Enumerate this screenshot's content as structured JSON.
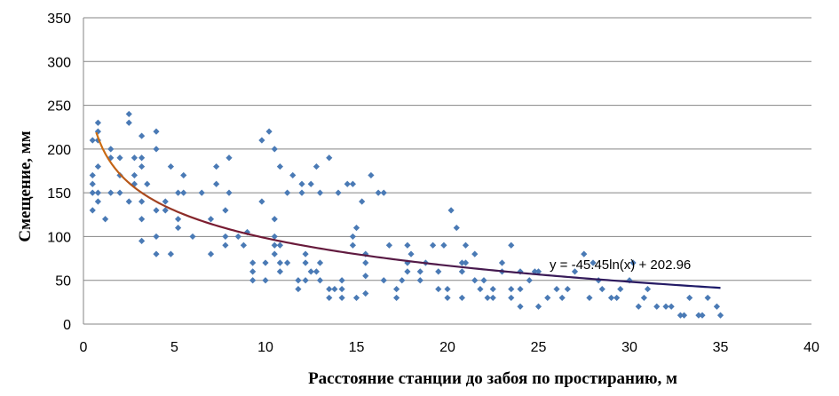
{
  "chart_data": {
    "type": "scatter",
    "title": "",
    "xlabel": "Расстояние станции до забоя по простиранию, м",
    "ylabel": "Смещение, мм",
    "xlim": [
      0,
      40
    ],
    "ylim": [
      0,
      350
    ],
    "x_ticks": [
      0,
      5,
      10,
      15,
      20,
      25,
      30,
      35,
      40
    ],
    "y_ticks": [
      0,
      50,
      100,
      150,
      200,
      250,
      300,
      350
    ],
    "grid": "horizontal",
    "legend": "none",
    "colors": {
      "points": "#4a7ab5",
      "trend_start": "#d07010",
      "trend_end": "#1a1a6a"
    },
    "series": [
      {
        "points": [
          [
            0.5,
            130
          ],
          [
            0.5,
            150
          ],
          [
            0.5,
            160
          ],
          [
            0.5,
            170
          ],
          [
            0.5,
            210
          ],
          [
            0.8,
            140
          ],
          [
            0.8,
            150
          ],
          [
            0.8,
            180
          ],
          [
            0.8,
            210
          ],
          [
            0.8,
            220
          ],
          [
            0.8,
            230
          ],
          [
            1.2,
            120
          ],
          [
            1.5,
            150
          ],
          [
            1.5,
            190
          ],
          [
            1.5,
            200
          ],
          [
            2,
            150
          ],
          [
            2,
            170
          ],
          [
            2,
            190
          ],
          [
            2.5,
            140
          ],
          [
            2.5,
            230
          ],
          [
            2.5,
            240
          ],
          [
            2.8,
            160
          ],
          [
            2.8,
            170
          ],
          [
            2.8,
            190
          ],
          [
            3.2,
            95
          ],
          [
            3.2,
            120
          ],
          [
            3.2,
            140
          ],
          [
            3.2,
            180
          ],
          [
            3.2,
            190
          ],
          [
            3.2,
            215
          ],
          [
            3.5,
            160
          ],
          [
            4,
            80
          ],
          [
            4,
            100
          ],
          [
            4,
            130
          ],
          [
            4,
            200
          ],
          [
            4,
            220
          ],
          [
            4.5,
            130
          ],
          [
            4.5,
            140
          ],
          [
            4.8,
            80
          ],
          [
            4.8,
            180
          ],
          [
            5.2,
            110
          ],
          [
            5.2,
            120
          ],
          [
            5.2,
            150
          ],
          [
            5.5,
            150
          ],
          [
            5.5,
            170
          ],
          [
            6,
            100
          ],
          [
            6.5,
            150
          ],
          [
            7,
            80
          ],
          [
            7,
            120
          ],
          [
            7.3,
            160
          ],
          [
            7.3,
            180
          ],
          [
            7.8,
            90
          ],
          [
            7.8,
            100
          ],
          [
            7.8,
            130
          ],
          [
            8,
            150
          ],
          [
            8,
            190
          ],
          [
            8.5,
            100
          ],
          [
            8.8,
            90
          ],
          [
            9,
            105
          ],
          [
            9.3,
            50
          ],
          [
            9.3,
            60
          ],
          [
            9.3,
            70
          ],
          [
            9.8,
            140
          ],
          [
            9.8,
            210
          ],
          [
            10,
            50
          ],
          [
            10,
            70
          ],
          [
            10.2,
            220
          ],
          [
            10.5,
            80
          ],
          [
            10.5,
            90
          ],
          [
            10.5,
            100
          ],
          [
            10.5,
            120
          ],
          [
            10.5,
            200
          ],
          [
            10.8,
            60
          ],
          [
            10.8,
            70
          ],
          [
            10.8,
            90
          ],
          [
            10.8,
            180
          ],
          [
            11.2,
            70
          ],
          [
            11.2,
            150
          ],
          [
            11.5,
            170
          ],
          [
            11.8,
            40
          ],
          [
            11.8,
            50
          ],
          [
            12,
            150
          ],
          [
            12,
            160
          ],
          [
            12.2,
            50
          ],
          [
            12.2,
            70
          ],
          [
            12.2,
            80
          ],
          [
            12.5,
            60
          ],
          [
            12.5,
            160
          ],
          [
            12.8,
            60
          ],
          [
            12.8,
            180
          ],
          [
            13,
            50
          ],
          [
            13,
            70
          ],
          [
            13,
            150
          ],
          [
            13.5,
            30
          ],
          [
            13.5,
            40
          ],
          [
            13.5,
            190
          ],
          [
            13.8,
            40
          ],
          [
            14,
            150
          ],
          [
            14.2,
            30
          ],
          [
            14.2,
            40
          ],
          [
            14.2,
            50
          ],
          [
            14.5,
            160
          ],
          [
            14.8,
            90
          ],
          [
            14.8,
            100
          ],
          [
            14.8,
            160
          ],
          [
            15,
            30
          ],
          [
            15,
            110
          ],
          [
            15.3,
            140
          ],
          [
            15.5,
            35
          ],
          [
            15.5,
            55
          ],
          [
            15.5,
            70
          ],
          [
            15.5,
            80
          ],
          [
            15.8,
            170
          ],
          [
            16.2,
            150
          ],
          [
            16.5,
            50
          ],
          [
            16.5,
            150
          ],
          [
            16.8,
            90
          ],
          [
            17.2,
            30
          ],
          [
            17.2,
            40
          ],
          [
            17.5,
            50
          ],
          [
            17.8,
            60
          ],
          [
            17.8,
            70
          ],
          [
            17.8,
            90
          ],
          [
            18,
            80
          ],
          [
            18.5,
            50
          ],
          [
            18.5,
            60
          ],
          [
            18.8,
            70
          ],
          [
            19.2,
            90
          ],
          [
            19.5,
            40
          ],
          [
            19.5,
            60
          ],
          [
            19.8,
            90
          ],
          [
            20,
            30
          ],
          [
            20,
            40
          ],
          [
            20.2,
            130
          ],
          [
            20.5,
            110
          ],
          [
            20.8,
            30
          ],
          [
            20.8,
            60
          ],
          [
            20.8,
            70
          ],
          [
            21,
            70
          ],
          [
            21,
            90
          ],
          [
            21.5,
            80
          ],
          [
            21.5,
            50
          ],
          [
            21.8,
            40
          ],
          [
            22,
            50
          ],
          [
            22.2,
            30
          ],
          [
            22.5,
            30
          ],
          [
            22.5,
            40
          ],
          [
            23,
            60
          ],
          [
            23,
            70
          ],
          [
            23.5,
            30
          ],
          [
            23.5,
            40
          ],
          [
            23.5,
            90
          ],
          [
            24,
            20
          ],
          [
            24,
            40
          ],
          [
            24,
            60
          ],
          [
            24.5,
            50
          ],
          [
            24.8,
            60
          ],
          [
            25,
            20
          ],
          [
            25,
            60
          ],
          [
            25.5,
            30
          ],
          [
            26,
            40
          ],
          [
            26.3,
            30
          ],
          [
            26.6,
            40
          ],
          [
            27,
            60
          ],
          [
            27.5,
            80
          ],
          [
            27.8,
            30
          ],
          [
            28,
            70
          ],
          [
            28.3,
            50
          ],
          [
            28.5,
            40
          ],
          [
            29,
            30
          ],
          [
            29.3,
            30
          ],
          [
            29.5,
            40
          ],
          [
            30,
            50
          ],
          [
            30.2,
            70
          ],
          [
            30.5,
            20
          ],
          [
            30.8,
            30
          ],
          [
            31,
            40
          ],
          [
            31.5,
            20
          ],
          [
            32,
            20
          ],
          [
            32.3,
            20
          ],
          [
            32.8,
            10
          ],
          [
            33,
            10
          ],
          [
            33.3,
            30
          ],
          [
            33.8,
            10
          ],
          [
            34,
            10
          ],
          [
            34.3,
            30
          ],
          [
            34.8,
            20
          ],
          [
            35,
            10
          ]
        ]
      }
    ],
    "trendline": {
      "equation": "y = -45.45ln(x) + 202.96",
      "a": -45.45,
      "b": 202.96,
      "x_range": [
        0.7,
        35
      ]
    }
  }
}
